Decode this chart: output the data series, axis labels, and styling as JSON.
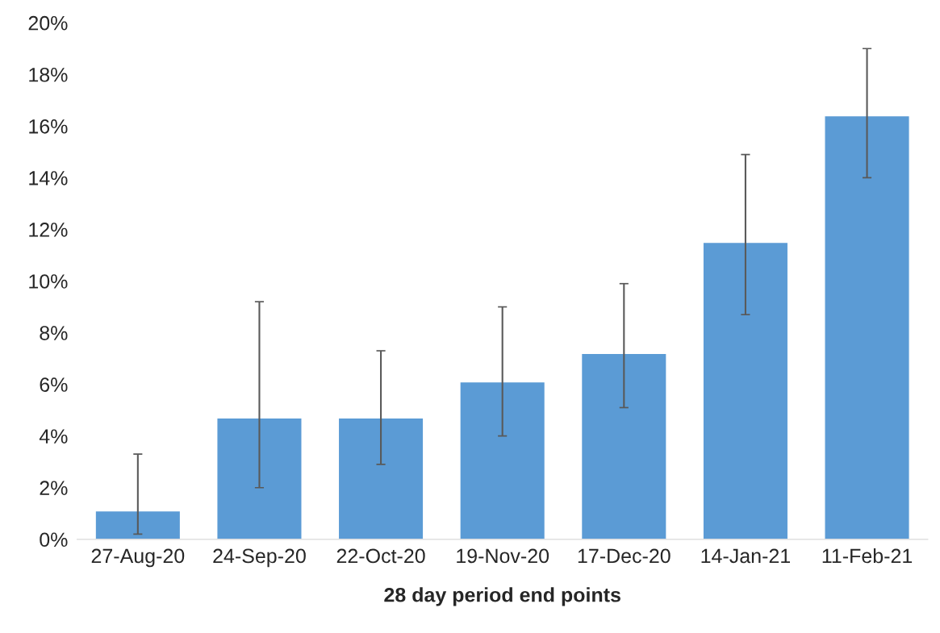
{
  "chart_data": {
    "type": "bar",
    "xlabel": "28 day period end points",
    "categories": [
      "27-Aug-20",
      "24-Sep-20",
      "22-Oct-20",
      "19-Nov-20",
      "17-Dec-20",
      "14-Jan-21",
      "11-Feb-21"
    ],
    "values": [
      1.1,
      4.7,
      4.7,
      6.1,
      7.2,
      11.5,
      16.4
    ],
    "errors": [
      [
        0.2,
        3.3
      ],
      [
        2.0,
        9.2
      ],
      [
        2.9,
        7.3
      ],
      [
        4.0,
        9.0
      ],
      [
        5.1,
        9.9
      ],
      [
        8.7,
        14.9
      ],
      [
        14.0,
        19.0
      ]
    ],
    "color": "#5b9bd5",
    "ylim": [
      0,
      20
    ],
    "yticks": [
      {
        "value": 0,
        "label": "0%"
      },
      {
        "value": 2,
        "label": "2%"
      },
      {
        "value": 4,
        "label": "4%"
      },
      {
        "value": 6,
        "label": "6%"
      },
      {
        "value": 8,
        "label": "8%"
      },
      {
        "value": 10,
        "label": "10%"
      },
      {
        "value": 12,
        "label": "12%"
      },
      {
        "value": 14,
        "label": "14%"
      },
      {
        "value": 16,
        "label": "16%"
      },
      {
        "value": 18,
        "label": "18%"
      },
      {
        "value": 20,
        "label": "20%"
      }
    ],
    "grid": false,
    "legend": false
  }
}
